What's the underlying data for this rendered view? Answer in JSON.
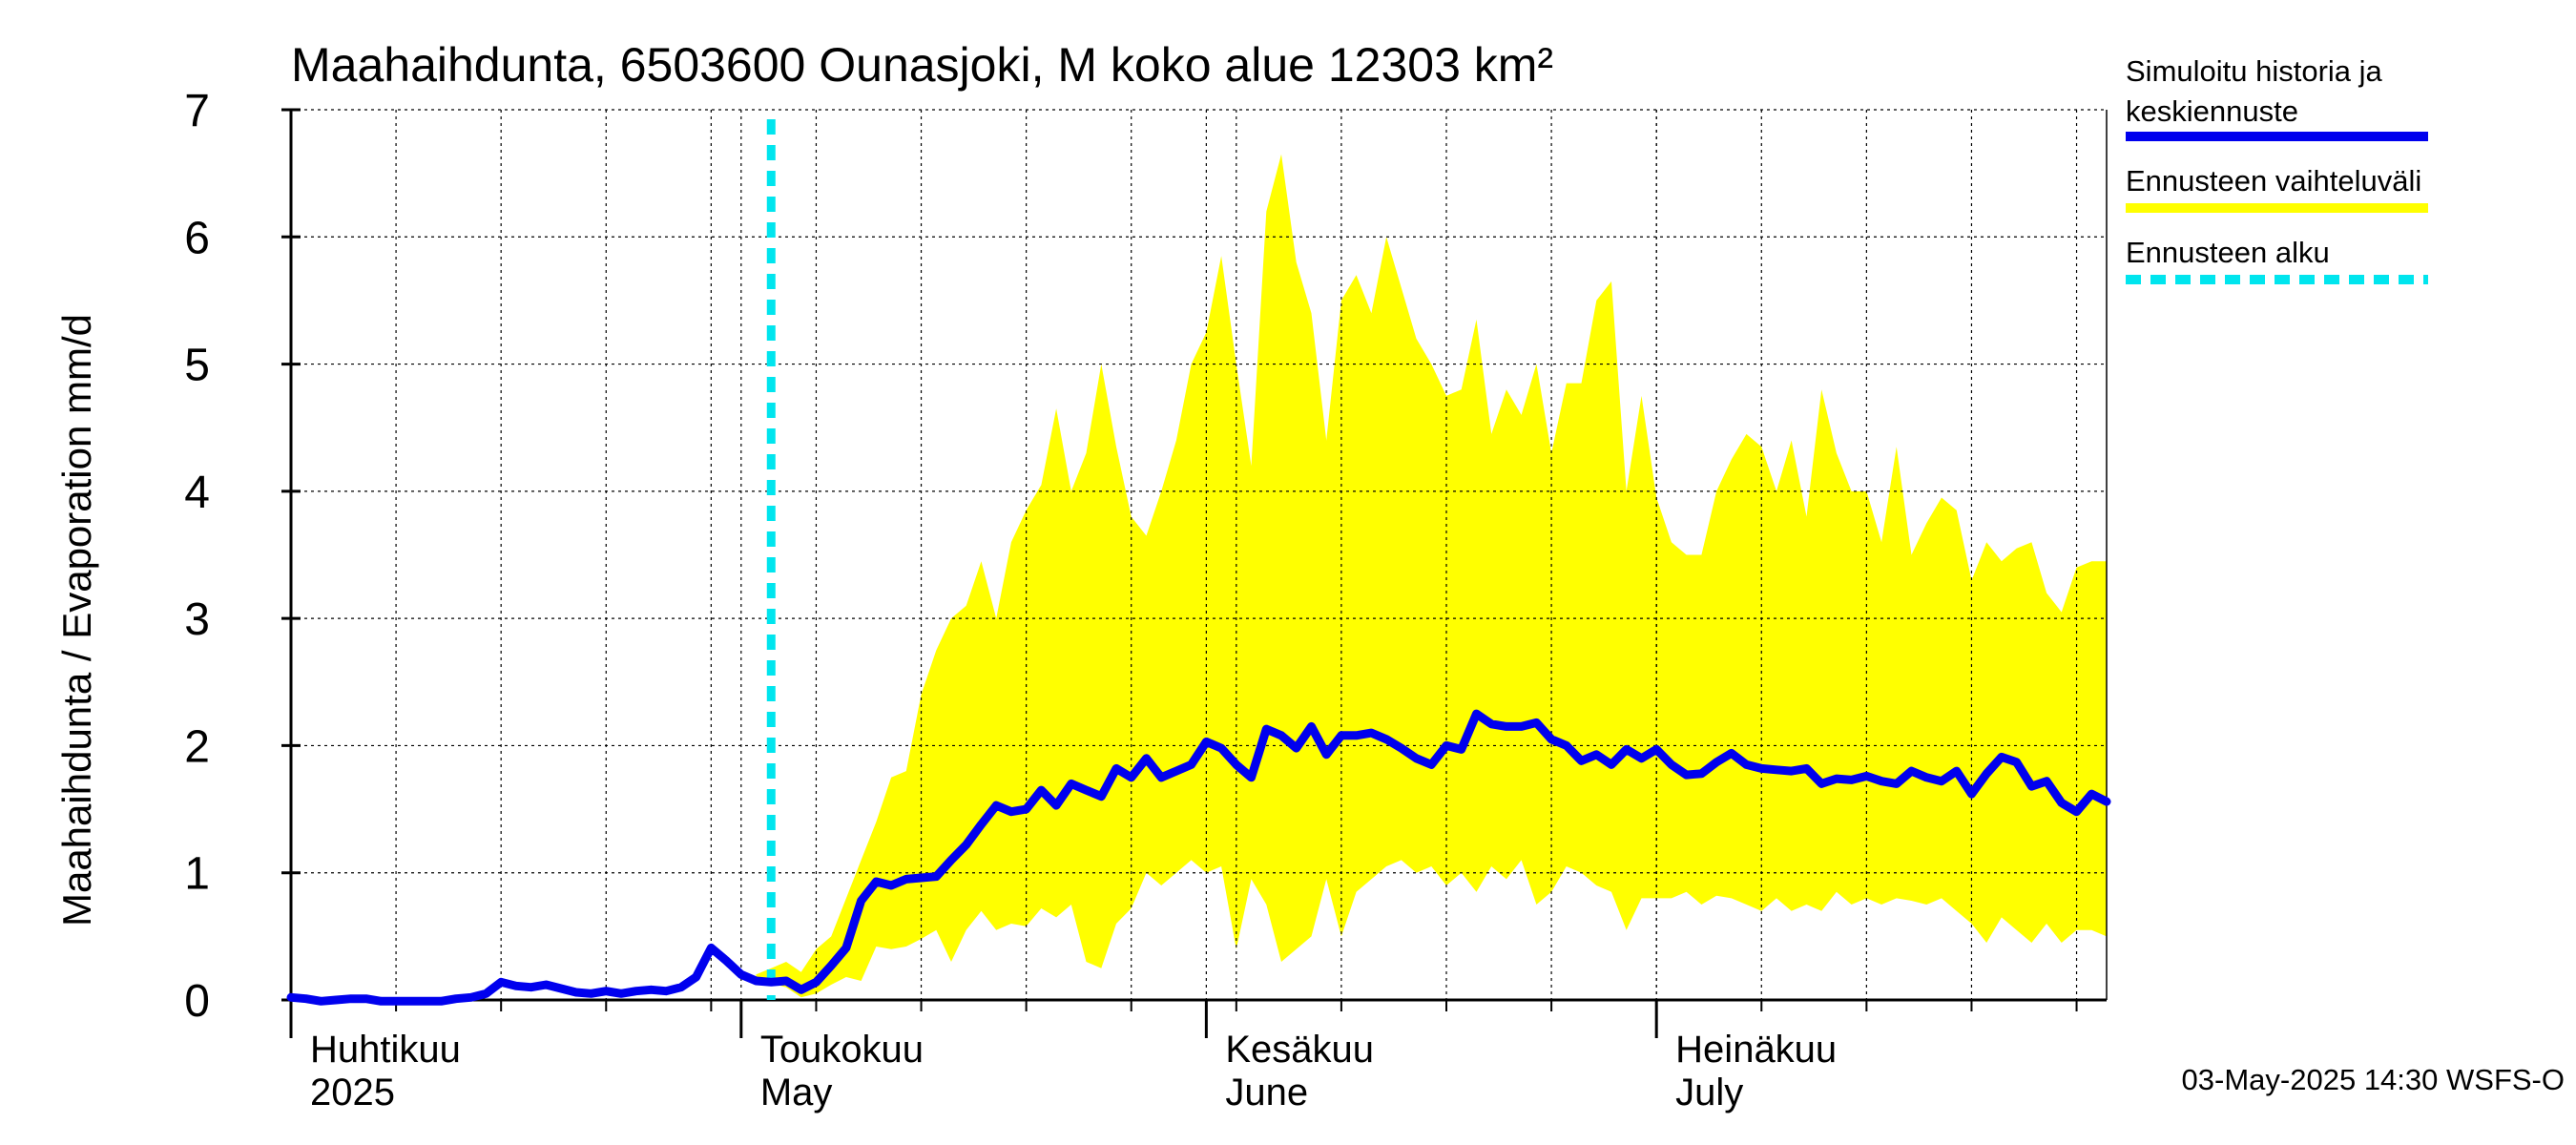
{
  "chart_data": {
    "type": "area",
    "title": "Maahaihdunta, 6503600 Ounasjoki, M koko alue 12303 km²",
    "ylabel": "Maahaihdunta / Evaporation   mm/d",
    "xlabel": "",
    "ylim": [
      0,
      7
    ],
    "y_ticks": [
      "0",
      "1",
      "2",
      "3",
      "4",
      "5",
      "6",
      "7"
    ],
    "x_start": "2025-04-01",
    "x_end": "2025-07-31",
    "grid": true,
    "legend_position": "right",
    "month_labels": [
      {
        "date": "2025-04-01",
        "line1": "Huhtikuu",
        "line2": "2025"
      },
      {
        "date": "2025-05-01",
        "line1": "Toukokuu",
        "line2": "May"
      },
      {
        "date": "2025-06-01",
        "line1": "Kesäkuu",
        "line2": "June"
      },
      {
        "date": "2025-07-01",
        "line1": "Heinäkuu",
        "line2": "July"
      }
    ],
    "forecast_start": "2025-05-03",
    "series": [
      {
        "name": "Simuloitu historia ja keskiennuste",
        "color": "#0000ee",
        "points": [
          [
            "2025-04-01",
            0.02
          ],
          [
            "2025-04-02",
            0.01
          ],
          [
            "2025-04-03",
            -0.01
          ],
          [
            "2025-04-04",
            0.0
          ],
          [
            "2025-04-05",
            0.01
          ],
          [
            "2025-04-06",
            0.01
          ],
          [
            "2025-04-07",
            -0.01
          ],
          [
            "2025-04-08",
            -0.01
          ],
          [
            "2025-04-09",
            -0.01
          ],
          [
            "2025-04-10",
            -0.01
          ],
          [
            "2025-04-11",
            -0.01
          ],
          [
            "2025-04-12",
            0.01
          ],
          [
            "2025-04-13",
            0.02
          ],
          [
            "2025-04-14",
            0.05
          ],
          [
            "2025-04-15",
            0.14
          ],
          [
            "2025-04-16",
            0.11
          ],
          [
            "2025-04-17",
            0.1
          ],
          [
            "2025-04-18",
            0.12
          ],
          [
            "2025-04-19",
            0.09
          ],
          [
            "2025-04-20",
            0.06
          ],
          [
            "2025-04-21",
            0.05
          ],
          [
            "2025-04-22",
            0.07
          ],
          [
            "2025-04-23",
            0.05
          ],
          [
            "2025-04-24",
            0.07
          ],
          [
            "2025-04-25",
            0.08
          ],
          [
            "2025-04-26",
            0.07
          ],
          [
            "2025-04-27",
            0.1
          ],
          [
            "2025-04-28",
            0.18
          ],
          [
            "2025-04-29",
            0.41
          ],
          [
            "2025-04-30",
            0.31
          ],
          [
            "2025-05-01",
            0.2
          ],
          [
            "2025-05-02",
            0.15
          ],
          [
            "2025-05-03",
            0.14
          ],
          [
            "2025-05-04",
            0.15
          ],
          [
            "2025-05-05",
            0.08
          ],
          [
            "2025-05-06",
            0.14
          ],
          [
            "2025-05-07",
            0.27
          ],
          [
            "2025-05-08",
            0.41
          ],
          [
            "2025-05-09",
            0.78
          ],
          [
            "2025-05-10",
            0.93
          ],
          [
            "2025-05-11",
            0.9
          ],
          [
            "2025-05-12",
            0.95
          ],
          [
            "2025-05-13",
            0.96
          ],
          [
            "2025-05-14",
            0.97
          ],
          [
            "2025-05-15",
            1.1
          ],
          [
            "2025-05-16",
            1.22
          ],
          [
            "2025-05-17",
            1.38
          ],
          [
            "2025-05-18",
            1.53
          ],
          [
            "2025-05-19",
            1.48
          ],
          [
            "2025-05-20",
            1.5
          ],
          [
            "2025-05-21",
            1.65
          ],
          [
            "2025-05-22",
            1.53
          ],
          [
            "2025-05-23",
            1.7
          ],
          [
            "2025-05-24",
            1.65
          ],
          [
            "2025-05-25",
            1.6
          ],
          [
            "2025-05-26",
            1.82
          ],
          [
            "2025-05-27",
            1.75
          ],
          [
            "2025-05-28",
            1.9
          ],
          [
            "2025-05-29",
            1.75
          ],
          [
            "2025-05-30",
            1.8
          ],
          [
            "2025-05-31",
            1.85
          ],
          [
            "2025-06-01",
            2.03
          ],
          [
            "2025-06-02",
            1.98
          ],
          [
            "2025-06-03",
            1.85
          ],
          [
            "2025-06-04",
            1.75
          ],
          [
            "2025-06-05",
            2.13
          ],
          [
            "2025-06-06",
            2.08
          ],
          [
            "2025-06-07",
            1.98
          ],
          [
            "2025-06-08",
            2.15
          ],
          [
            "2025-06-09",
            1.93
          ],
          [
            "2025-06-10",
            2.08
          ],
          [
            "2025-06-11",
            2.08
          ],
          [
            "2025-06-12",
            2.1
          ],
          [
            "2025-06-13",
            2.05
          ],
          [
            "2025-06-14",
            1.98
          ],
          [
            "2025-06-15",
            1.9
          ],
          [
            "2025-06-16",
            1.85
          ],
          [
            "2025-06-17",
            2.0
          ],
          [
            "2025-06-18",
            1.97
          ],
          [
            "2025-06-19",
            2.25
          ],
          [
            "2025-06-20",
            2.17
          ],
          [
            "2025-06-21",
            2.15
          ],
          [
            "2025-06-22",
            2.15
          ],
          [
            "2025-06-23",
            2.18
          ],
          [
            "2025-06-24",
            2.05
          ],
          [
            "2025-06-25",
            2.0
          ],
          [
            "2025-06-26",
            1.88
          ],
          [
            "2025-06-27",
            1.93
          ],
          [
            "2025-06-28",
            1.85
          ],
          [
            "2025-06-29",
            1.97
          ],
          [
            "2025-06-30",
            1.9
          ],
          [
            "2025-07-01",
            1.97
          ],
          [
            "2025-07-02",
            1.85
          ],
          [
            "2025-07-03",
            1.77
          ],
          [
            "2025-07-04",
            1.78
          ],
          [
            "2025-07-05",
            1.87
          ],
          [
            "2025-07-06",
            1.94
          ],
          [
            "2025-07-07",
            1.85
          ],
          [
            "2025-07-08",
            1.82
          ],
          [
            "2025-07-09",
            1.81
          ],
          [
            "2025-07-10",
            1.8
          ],
          [
            "2025-07-11",
            1.82
          ],
          [
            "2025-07-12",
            1.7
          ],
          [
            "2025-07-13",
            1.74
          ],
          [
            "2025-07-14",
            1.73
          ],
          [
            "2025-07-15",
            1.76
          ],
          [
            "2025-07-16",
            1.72
          ],
          [
            "2025-07-17",
            1.7
          ],
          [
            "2025-07-18",
            1.8
          ],
          [
            "2025-07-19",
            1.75
          ],
          [
            "2025-07-20",
            1.72
          ],
          [
            "2025-07-21",
            1.8
          ],
          [
            "2025-07-22",
            1.62
          ],
          [
            "2025-07-23",
            1.78
          ],
          [
            "2025-07-24",
            1.91
          ],
          [
            "2025-07-25",
            1.87
          ],
          [
            "2025-07-26",
            1.68
          ],
          [
            "2025-07-27",
            1.72
          ],
          [
            "2025-07-28",
            1.55
          ],
          [
            "2025-07-29",
            1.48
          ],
          [
            "2025-07-30",
            1.62
          ],
          [
            "2025-07-31",
            1.56
          ]
        ]
      },
      {
        "name": "Ennusteen vaihteluväli",
        "color": "#ffff00",
        "points": [
          [
            "2025-05-02",
            0.15,
            0.2
          ],
          [
            "2025-05-03",
            0.13,
            0.25
          ],
          [
            "2025-05-04",
            0.1,
            0.3
          ],
          [
            "2025-05-05",
            0.02,
            0.22
          ],
          [
            "2025-05-06",
            0.05,
            0.4
          ],
          [
            "2025-05-07",
            0.12,
            0.5
          ],
          [
            "2025-05-08",
            0.18,
            0.8
          ],
          [
            "2025-05-09",
            0.15,
            1.1
          ],
          [
            "2025-05-10",
            0.42,
            1.4
          ],
          [
            "2025-05-11",
            0.4,
            1.75
          ],
          [
            "2025-05-12",
            0.42,
            1.8
          ],
          [
            "2025-05-13",
            0.48,
            2.4
          ],
          [
            "2025-05-14",
            0.55,
            2.75
          ],
          [
            "2025-05-15",
            0.3,
            3.0
          ],
          [
            "2025-05-16",
            0.55,
            3.1
          ],
          [
            "2025-05-17",
            0.7,
            3.45
          ],
          [
            "2025-05-18",
            0.55,
            3.0
          ],
          [
            "2025-05-19",
            0.6,
            3.6
          ],
          [
            "2025-05-20",
            0.58,
            3.85
          ],
          [
            "2025-05-21",
            0.72,
            4.05
          ],
          [
            "2025-05-22",
            0.65,
            4.65
          ],
          [
            "2025-05-23",
            0.75,
            4.0
          ],
          [
            "2025-05-24",
            0.3,
            4.3
          ],
          [
            "2025-05-25",
            0.25,
            5.0
          ],
          [
            "2025-05-26",
            0.6,
            4.35
          ],
          [
            "2025-05-27",
            0.72,
            3.8
          ],
          [
            "2025-05-28",
            1.0,
            3.65
          ],
          [
            "2025-05-29",
            0.9,
            4.0
          ],
          [
            "2025-05-30",
            1.0,
            4.4
          ],
          [
            "2025-05-31",
            1.1,
            5.0
          ],
          [
            "2025-06-01",
            1.0,
            5.25
          ],
          [
            "2025-06-02",
            1.05,
            5.85
          ],
          [
            "2025-06-03",
            0.4,
            5.0
          ],
          [
            "2025-06-04",
            0.95,
            4.2
          ],
          [
            "2025-06-05",
            0.75,
            6.2
          ],
          [
            "2025-06-06",
            0.3,
            6.65
          ],
          [
            "2025-06-07",
            0.4,
            5.8
          ],
          [
            "2025-06-08",
            0.5,
            5.4
          ],
          [
            "2025-06-09",
            0.95,
            4.4
          ],
          [
            "2025-06-10",
            0.5,
            5.5
          ],
          [
            "2025-06-11",
            0.85,
            5.7
          ],
          [
            "2025-06-12",
            0.95,
            5.4
          ],
          [
            "2025-06-13",
            1.05,
            6.0
          ],
          [
            "2025-06-14",
            1.1,
            5.6
          ],
          [
            "2025-06-15",
            1.0,
            5.2
          ],
          [
            "2025-06-16",
            1.05,
            5.0
          ],
          [
            "2025-06-17",
            0.9,
            4.75
          ],
          [
            "2025-06-18",
            1.0,
            4.8
          ],
          [
            "2025-06-19",
            0.85,
            5.35
          ],
          [
            "2025-06-20",
            1.05,
            4.45
          ],
          [
            "2025-06-21",
            0.95,
            4.8
          ],
          [
            "2025-06-22",
            1.1,
            4.6
          ],
          [
            "2025-06-23",
            0.75,
            5.0
          ],
          [
            "2025-06-24",
            0.85,
            4.3
          ],
          [
            "2025-06-25",
            1.05,
            4.85
          ],
          [
            "2025-06-26",
            1.0,
            4.85
          ],
          [
            "2025-06-27",
            0.9,
            5.5
          ],
          [
            "2025-06-28",
            0.85,
            5.65
          ],
          [
            "2025-06-29",
            0.55,
            4.0
          ],
          [
            "2025-06-30",
            0.8,
            4.75
          ],
          [
            "2025-07-01",
            0.8,
            3.95
          ],
          [
            "2025-07-02",
            0.8,
            3.6
          ],
          [
            "2025-07-03",
            0.85,
            3.5
          ],
          [
            "2025-07-04",
            0.75,
            3.5
          ],
          [
            "2025-07-05",
            0.82,
            4.0
          ],
          [
            "2025-07-06",
            0.8,
            4.25
          ],
          [
            "2025-07-07",
            0.75,
            4.45
          ],
          [
            "2025-07-08",
            0.7,
            4.35
          ],
          [
            "2025-07-09",
            0.8,
            4.0
          ],
          [
            "2025-07-10",
            0.7,
            4.4
          ],
          [
            "2025-07-11",
            0.75,
            3.8
          ],
          [
            "2025-07-12",
            0.7,
            4.8
          ],
          [
            "2025-07-13",
            0.85,
            4.3
          ],
          [
            "2025-07-14",
            0.75,
            4.0
          ],
          [
            "2025-07-15",
            0.8,
            4.0
          ],
          [
            "2025-07-16",
            0.75,
            3.6
          ],
          [
            "2025-07-17",
            0.8,
            4.35
          ],
          [
            "2025-07-18",
            0.78,
            3.5
          ],
          [
            "2025-07-19",
            0.75,
            3.75
          ],
          [
            "2025-07-20",
            0.8,
            3.95
          ],
          [
            "2025-07-21",
            0.7,
            3.85
          ],
          [
            "2025-07-22",
            0.6,
            3.3
          ],
          [
            "2025-07-23",
            0.45,
            3.6
          ],
          [
            "2025-07-24",
            0.65,
            3.45
          ],
          [
            "2025-07-25",
            0.55,
            3.55
          ],
          [
            "2025-07-26",
            0.45,
            3.6
          ],
          [
            "2025-07-27",
            0.6,
            3.2
          ],
          [
            "2025-07-28",
            0.45,
            3.05
          ],
          [
            "2025-07-29",
            0.55,
            3.4
          ],
          [
            "2025-07-30",
            0.55,
            3.45
          ],
          [
            "2025-07-31",
            0.5,
            3.45
          ]
        ]
      }
    ]
  },
  "legend": [
    {
      "line1": "Simuloitu historia ja",
      "line2": "keskiennuste",
      "color": "#0000ee",
      "style": "solid"
    },
    {
      "line1": "Ennusteen vaihteluväli",
      "line2": "",
      "color": "#ffff00",
      "style": "solid"
    },
    {
      "line1": "Ennusteen alku",
      "line2": "",
      "color": "#00e5ee",
      "style": "dashed"
    }
  ],
  "footer": "03-May-2025 14:30 WSFS-O"
}
